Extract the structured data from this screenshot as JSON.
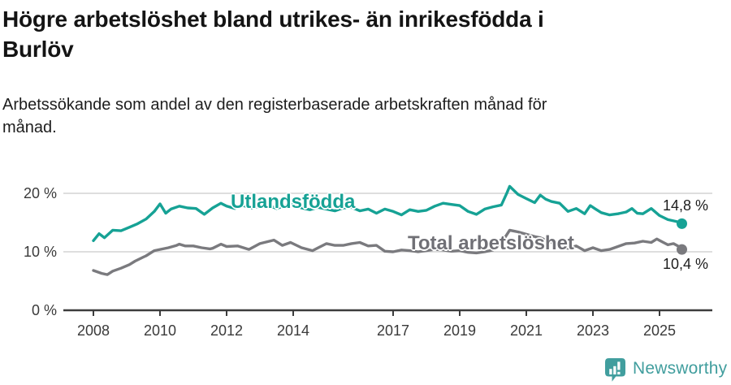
{
  "header": {
    "title_lines": [
      "Högre arbetslöshet bland utrikes- än inrikesfödda i",
      "Burlöv"
    ],
    "subtitle_lines": [
      "Arbetssökande som andel av den registerbaserade arbetskraften månad för",
      "månad."
    ]
  },
  "colors": {
    "series_foreign": "#16A295",
    "series_total": "#7A7A7E",
    "grid": "#DEDEDE",
    "axis": "#3C3C3C",
    "text": "#1C1C1C",
    "brand": "#419E9E"
  },
  "footer": {
    "brand_name": "Newsworthy",
    "logo_icon": "newsworthy-speech-bubble-bar-chart-icon"
  },
  "chart_data": {
    "type": "line",
    "title": "Högre arbetslöshet bland utrikes- än inrikesfödda i Burlöv",
    "subtitle": "Arbetssökande som andel av den registerbaserade arbetskraften månad för månad.",
    "xlabel": "",
    "ylabel": "",
    "x_unit": "year (monthly data)",
    "y_unit": "%",
    "xlim": [
      2007.1,
      2026.6
    ],
    "ylim": [
      0,
      21.8
    ],
    "grid": "horizontal-only",
    "legend_position": "inline-labels-on-lines",
    "x_ticks": [
      2008,
      2010,
      2012,
      2014,
      2017,
      2019,
      2021,
      2023,
      2025
    ],
    "y_ticks": [
      0,
      10,
      20
    ],
    "y_tick_labels": [
      "0 %",
      "10 %",
      "20 %"
    ],
    "y_gridlines": [
      10,
      20
    ],
    "series": [
      {
        "id": "utlandsfodda",
        "name": "Utlandsfödda",
        "color": "#16A295",
        "end_label": "14,8 %",
        "end_value": 14.8,
        "points": [
          [
            2008.0,
            11.9
          ],
          [
            2008.17,
            13.1
          ],
          [
            2008.33,
            12.4
          ],
          [
            2008.58,
            13.7
          ],
          [
            2008.83,
            13.6
          ],
          [
            2009.08,
            14.2
          ],
          [
            2009.33,
            14.8
          ],
          [
            2009.58,
            15.6
          ],
          [
            2009.83,
            16.9
          ],
          [
            2010.0,
            18.2
          ],
          [
            2010.17,
            16.6
          ],
          [
            2010.33,
            17.3
          ],
          [
            2010.58,
            17.8
          ],
          [
            2010.83,
            17.5
          ],
          [
            2011.08,
            17.4
          ],
          [
            2011.33,
            16.4
          ],
          [
            2011.58,
            17.5
          ],
          [
            2011.83,
            18.3
          ],
          [
            2012.0,
            17.8
          ],
          [
            2012.25,
            17.4
          ],
          [
            2012.5,
            17.9
          ],
          [
            2012.75,
            17.5
          ],
          [
            2013.0,
            17.8
          ],
          [
            2013.25,
            18.0
          ],
          [
            2013.5,
            17.4
          ],
          [
            2013.75,
            17.9
          ],
          [
            2014.0,
            18.1
          ],
          [
            2014.25,
            17.5
          ],
          [
            2014.5,
            17.2
          ],
          [
            2014.75,
            17.6
          ],
          [
            2015.0,
            17.3
          ],
          [
            2015.25,
            17.0
          ],
          [
            2015.5,
            17.5
          ],
          [
            2015.75,
            17.6
          ],
          [
            2016.0,
            17.0
          ],
          [
            2016.25,
            17.3
          ],
          [
            2016.5,
            16.6
          ],
          [
            2016.75,
            17.3
          ],
          [
            2017.0,
            16.9
          ],
          [
            2017.25,
            16.3
          ],
          [
            2017.5,
            17.2
          ],
          [
            2017.75,
            16.9
          ],
          [
            2018.0,
            17.1
          ],
          [
            2018.25,
            17.8
          ],
          [
            2018.5,
            18.3
          ],
          [
            2018.75,
            18.1
          ],
          [
            2019.0,
            17.9
          ],
          [
            2019.25,
            16.9
          ],
          [
            2019.5,
            16.4
          ],
          [
            2019.75,
            17.3
          ],
          [
            2020.0,
            17.7
          ],
          [
            2020.25,
            18.0
          ],
          [
            2020.42,
            20.1
          ],
          [
            2020.5,
            21.2
          ],
          [
            2020.75,
            19.8
          ],
          [
            2021.0,
            19.1
          ],
          [
            2021.25,
            18.4
          ],
          [
            2021.42,
            19.7
          ],
          [
            2021.58,
            19.0
          ],
          [
            2021.75,
            18.6
          ],
          [
            2022.0,
            18.3
          ],
          [
            2022.25,
            16.9
          ],
          [
            2022.5,
            17.4
          ],
          [
            2022.75,
            16.5
          ],
          [
            2022.92,
            17.9
          ],
          [
            2023.08,
            17.3
          ],
          [
            2023.25,
            16.7
          ],
          [
            2023.5,
            16.3
          ],
          [
            2023.75,
            16.5
          ],
          [
            2024.0,
            16.8
          ],
          [
            2024.17,
            17.4
          ],
          [
            2024.33,
            16.6
          ],
          [
            2024.5,
            16.5
          ],
          [
            2024.75,
            17.4
          ],
          [
            2025.0,
            16.2
          ],
          [
            2025.25,
            15.5
          ],
          [
            2025.5,
            15.2
          ],
          [
            2025.67,
            14.8
          ]
        ]
      },
      {
        "id": "total",
        "name": "Total arbetslöshet",
        "color": "#7A7A7E",
        "end_label": "10,4 %",
        "end_value": 10.4,
        "points": [
          [
            2008.0,
            6.8
          ],
          [
            2008.25,
            6.3
          ],
          [
            2008.42,
            6.1
          ],
          [
            2008.58,
            6.7
          ],
          [
            2008.83,
            7.2
          ],
          [
            2009.08,
            7.8
          ],
          [
            2009.25,
            8.4
          ],
          [
            2009.5,
            9.1
          ],
          [
            2009.58,
            9.3
          ],
          [
            2009.83,
            10.2
          ],
          [
            2010.0,
            10.4
          ],
          [
            2010.25,
            10.7
          ],
          [
            2010.5,
            11.1
          ],
          [
            2010.58,
            11.3
          ],
          [
            2010.75,
            11.0
          ],
          [
            2011.0,
            11.0
          ],
          [
            2011.25,
            10.7
          ],
          [
            2011.5,
            10.5
          ],
          [
            2011.58,
            10.6
          ],
          [
            2011.83,
            11.3
          ],
          [
            2012.0,
            10.9
          ],
          [
            2012.33,
            11.0
          ],
          [
            2012.67,
            10.4
          ],
          [
            2013.0,
            11.4
          ],
          [
            2013.42,
            12.0
          ],
          [
            2013.67,
            11.1
          ],
          [
            2013.92,
            11.6
          ],
          [
            2014.25,
            10.7
          ],
          [
            2014.58,
            10.2
          ],
          [
            2014.75,
            10.7
          ],
          [
            2015.0,
            11.4
          ],
          [
            2015.25,
            11.1
          ],
          [
            2015.5,
            11.1
          ],
          [
            2015.75,
            11.4
          ],
          [
            2016.0,
            11.6
          ],
          [
            2016.25,
            11.0
          ],
          [
            2016.5,
            11.1
          ],
          [
            2016.75,
            10.1
          ],
          [
            2017.0,
            10.0
          ],
          [
            2017.25,
            10.3
          ],
          [
            2017.5,
            10.2
          ],
          [
            2017.75,
            10.0
          ],
          [
            2018.0,
            10.2
          ],
          [
            2018.25,
            10.4
          ],
          [
            2018.5,
            10.3
          ],
          [
            2018.75,
            10.1
          ],
          [
            2019.0,
            10.2
          ],
          [
            2019.25,
            9.9
          ],
          [
            2019.5,
            9.8
          ],
          [
            2019.75,
            10.0
          ],
          [
            2020.0,
            10.3
          ],
          [
            2020.25,
            11.5
          ],
          [
            2020.5,
            13.7
          ],
          [
            2020.75,
            13.4
          ],
          [
            2021.0,
            13.0
          ],
          [
            2021.25,
            12.6
          ],
          [
            2021.42,
            12.4
          ],
          [
            2021.58,
            12.0
          ],
          [
            2021.75,
            11.6
          ],
          [
            2022.0,
            11.0
          ],
          [
            2022.25,
            10.6
          ],
          [
            2022.5,
            11.0
          ],
          [
            2022.75,
            10.2
          ],
          [
            2023.0,
            10.7
          ],
          [
            2023.25,
            10.2
          ],
          [
            2023.5,
            10.4
          ],
          [
            2023.75,
            10.9
          ],
          [
            2024.0,
            11.4
          ],
          [
            2024.25,
            11.5
          ],
          [
            2024.5,
            11.8
          ],
          [
            2024.75,
            11.6
          ],
          [
            2024.92,
            12.2
          ],
          [
            2025.08,
            11.7
          ],
          [
            2025.25,
            11.2
          ],
          [
            2025.42,
            11.4
          ],
          [
            2025.55,
            11.0
          ],
          [
            2025.67,
            10.4
          ]
        ]
      }
    ]
  }
}
